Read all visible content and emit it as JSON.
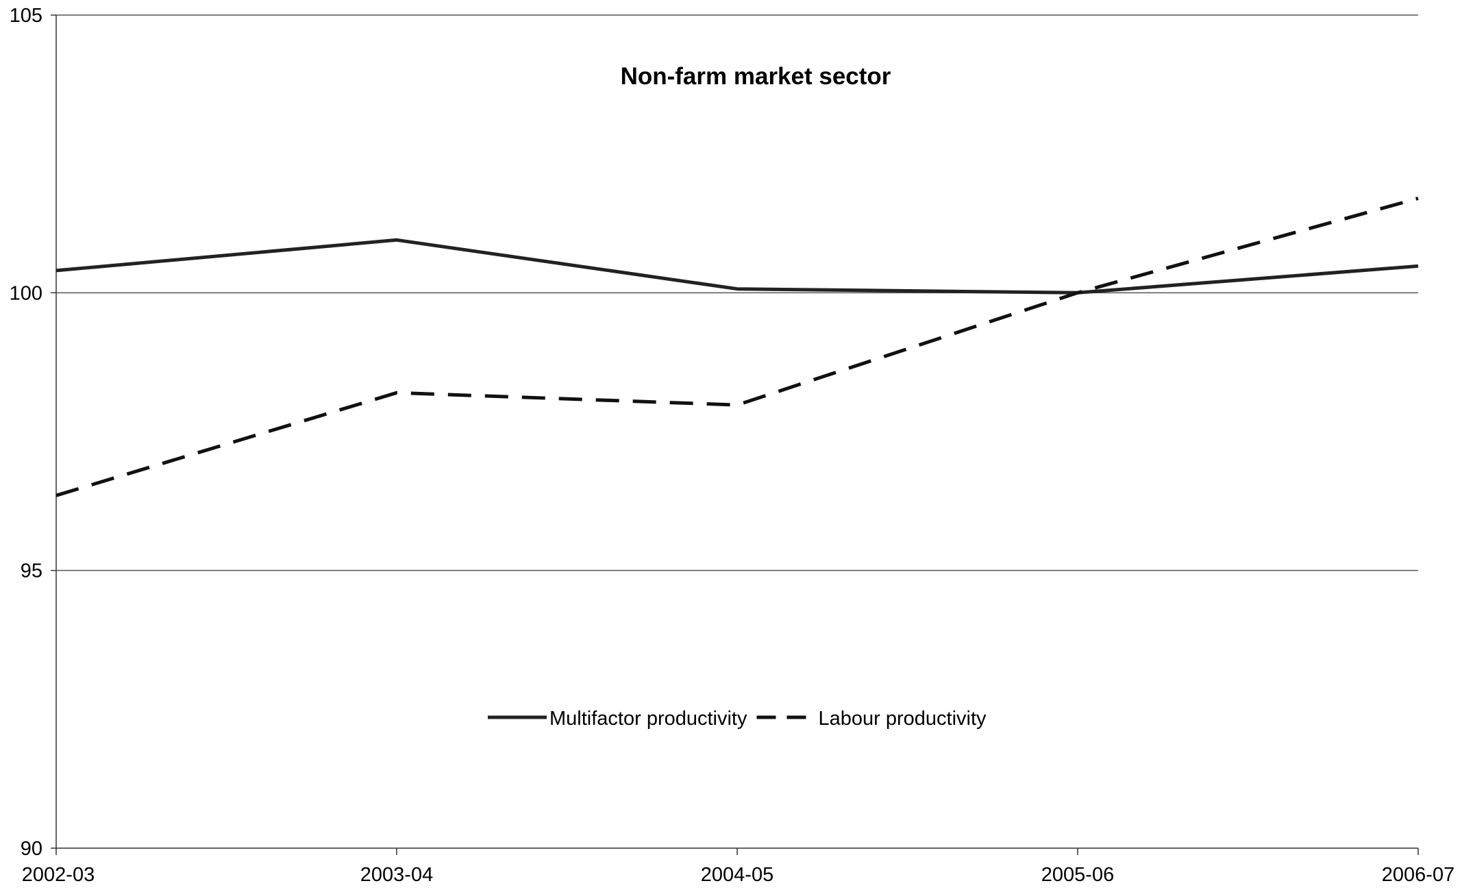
{
  "chart_data": {
    "type": "line",
    "title": "Non-farm market sector",
    "xlabel": "",
    "ylabel": "",
    "categories": [
      "2002-03",
      "2003-04",
      "2004-05",
      "2005-06",
      "2006-07"
    ],
    "ylim": [
      90,
      105
    ],
    "yticks": [
      "90",
      "95",
      "100",
      "105"
    ],
    "grid": "horizontal",
    "legend_position": "lower-center",
    "series": [
      {
        "name": "Multifactor productivity",
        "style": "solid",
        "color": "#222222",
        "values": [
          100.4,
          100.95,
          100.07,
          100.0,
          100.48
        ]
      },
      {
        "name": "Labour productivity",
        "style": "dashed",
        "color": "#111111",
        "values": [
          96.35,
          98.2,
          97.98,
          100.0,
          101.7
        ]
      }
    ]
  }
}
